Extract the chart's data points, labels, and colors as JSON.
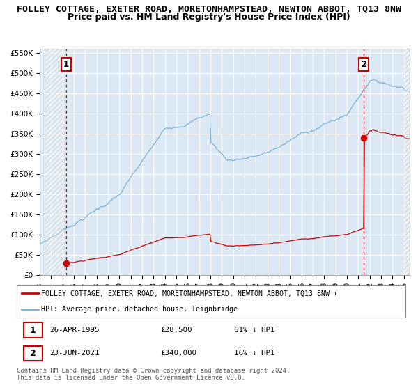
{
  "title": "FOLLEY COTTAGE, EXETER ROAD, MORETONHAMPSTEAD, NEWTON ABBOT, TQ13 8NW",
  "subtitle": "Price paid vs. HM Land Registry's House Price Index (HPI)",
  "ylim": [
    0,
    560000
  ],
  "yticks": [
    0,
    50000,
    100000,
    150000,
    200000,
    250000,
    300000,
    350000,
    400000,
    450000,
    500000,
    550000
  ],
  "xlim_start": 1993.58,
  "xlim_end": 2025.5,
  "bg_color": "#dce9f5",
  "grid_color": "#ffffff",
  "hpi_color": "#7ab0d4",
  "price_color": "#cc0000",
  "point1_date_num": 1995.32,
  "point1_price": 28500,
  "point2_date_num": 2021.48,
  "point2_price": 340000,
  "legend_price_label": "FOLLEY COTTAGE, EXETER ROAD, MORETONHAMPSTEAD, NEWTON ABBOT, TQ13 8NW (",
  "legend_hpi_label": "HPI: Average price, detached house, Teignbridge",
  "footnote": "Contains HM Land Registry data © Crown copyright and database right 2024.\nThis data is licensed under the Open Government Licence v3.0.",
  "title_fontsize": 9.5,
  "subtitle_fontsize": 9,
  "tick_fontsize": 7.5,
  "hatch_start_end": 1995.0,
  "hatch_end_start": 2025.0
}
